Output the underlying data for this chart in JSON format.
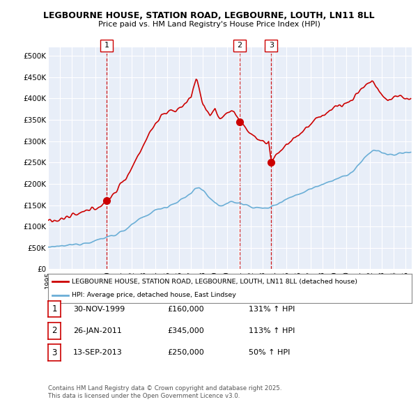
{
  "title_line1": "LEGBOURNE HOUSE, STATION ROAD, LEGBOURNE, LOUTH, LN11 8LL",
  "title_line2": "Price paid vs. HM Land Registry's House Price Index (HPI)",
  "ylim": [
    0,
    520000
  ],
  "yticks": [
    0,
    50000,
    100000,
    150000,
    200000,
    250000,
    300000,
    350000,
    400000,
    450000,
    500000
  ],
  "ytick_labels": [
    "£0",
    "£50K",
    "£100K",
    "£150K",
    "£200K",
    "£250K",
    "£300K",
    "£350K",
    "£400K",
    "£450K",
    "£500K"
  ],
  "hpi_color": "#6aaed6",
  "price_color": "#cc0000",
  "sale_dates": [
    1999.92,
    2011.07,
    2013.71
  ],
  "sale_prices": [
    160000,
    345000,
    250000
  ],
  "sale_labels": [
    "1",
    "2",
    "3"
  ],
  "legend_line1": "LEGBOURNE HOUSE, STATION ROAD, LEGBOURNE, LOUTH, LN11 8LL (detached house)",
  "legend_line2": "HPI: Average price, detached house, East Lindsey",
  "table_entries": [
    {
      "num": "1",
      "date": "30-NOV-1999",
      "price": "£160,000",
      "hpi": "131% ↑ HPI"
    },
    {
      "num": "2",
      "date": "26-JAN-2011",
      "price": "£345,000",
      "hpi": "113% ↑ HPI"
    },
    {
      "num": "3",
      "date": "13-SEP-2013",
      "price": "£250,000",
      "hpi": "50% ↑ HPI"
    }
  ],
  "footer": "Contains HM Land Registry data © Crown copyright and database right 2025.\nThis data is licensed under the Open Government Licence v3.0.",
  "background_color": "#ffffff",
  "plot_bg_color": "#e8eef8",
  "grid_color": "#ffffff",
  "vline_color": "#cc0000",
  "xmin": 1995.0,
  "xmax": 2025.5
}
